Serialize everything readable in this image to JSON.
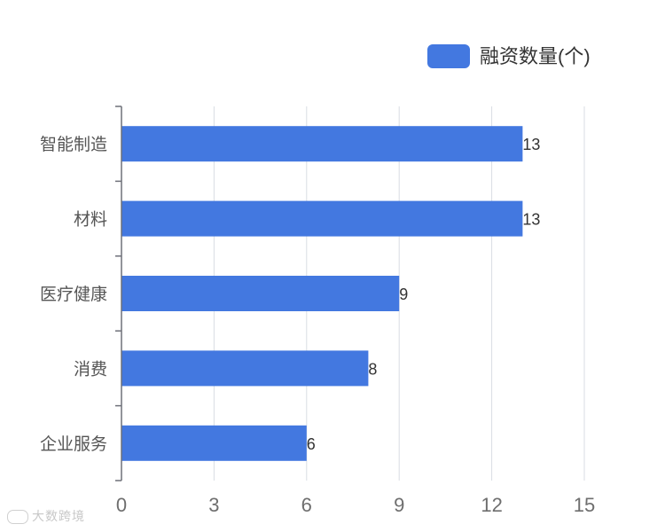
{
  "chart_data": {
    "type": "bar",
    "orientation": "horizontal",
    "categories": [
      "智能制造",
      "材料",
      "医疗健康",
      "消费",
      "企业服务"
    ],
    "series": [
      {
        "name": "融资数量(个)",
        "values": [
          13,
          13,
          9,
          8,
          6
        ],
        "color": "#4378e0"
      }
    ],
    "xlim": [
      0,
      15
    ],
    "xticks": [
      0,
      3,
      6,
      9,
      12,
      15
    ],
    "grid": true,
    "legend_position": "top-right",
    "data_labels": true
  },
  "watermark": {
    "text": "大数跨境",
    "icon": "logo-icon"
  }
}
